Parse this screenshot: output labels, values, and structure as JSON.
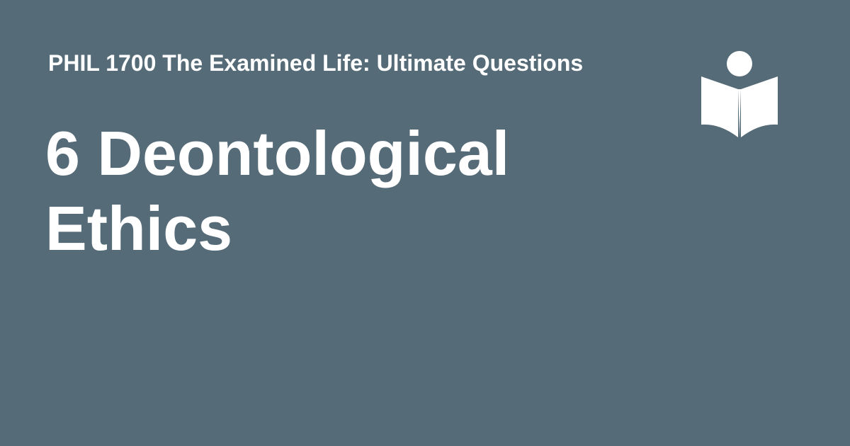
{
  "card": {
    "background_color": "#566b78",
    "text_color": "#ffffff",
    "course_title": "PHIL 1700 The Examined Life: Ultimate Questions",
    "chapter_title": "6 Deontological Ethics",
    "logo_icon": "reader-book-icon"
  }
}
